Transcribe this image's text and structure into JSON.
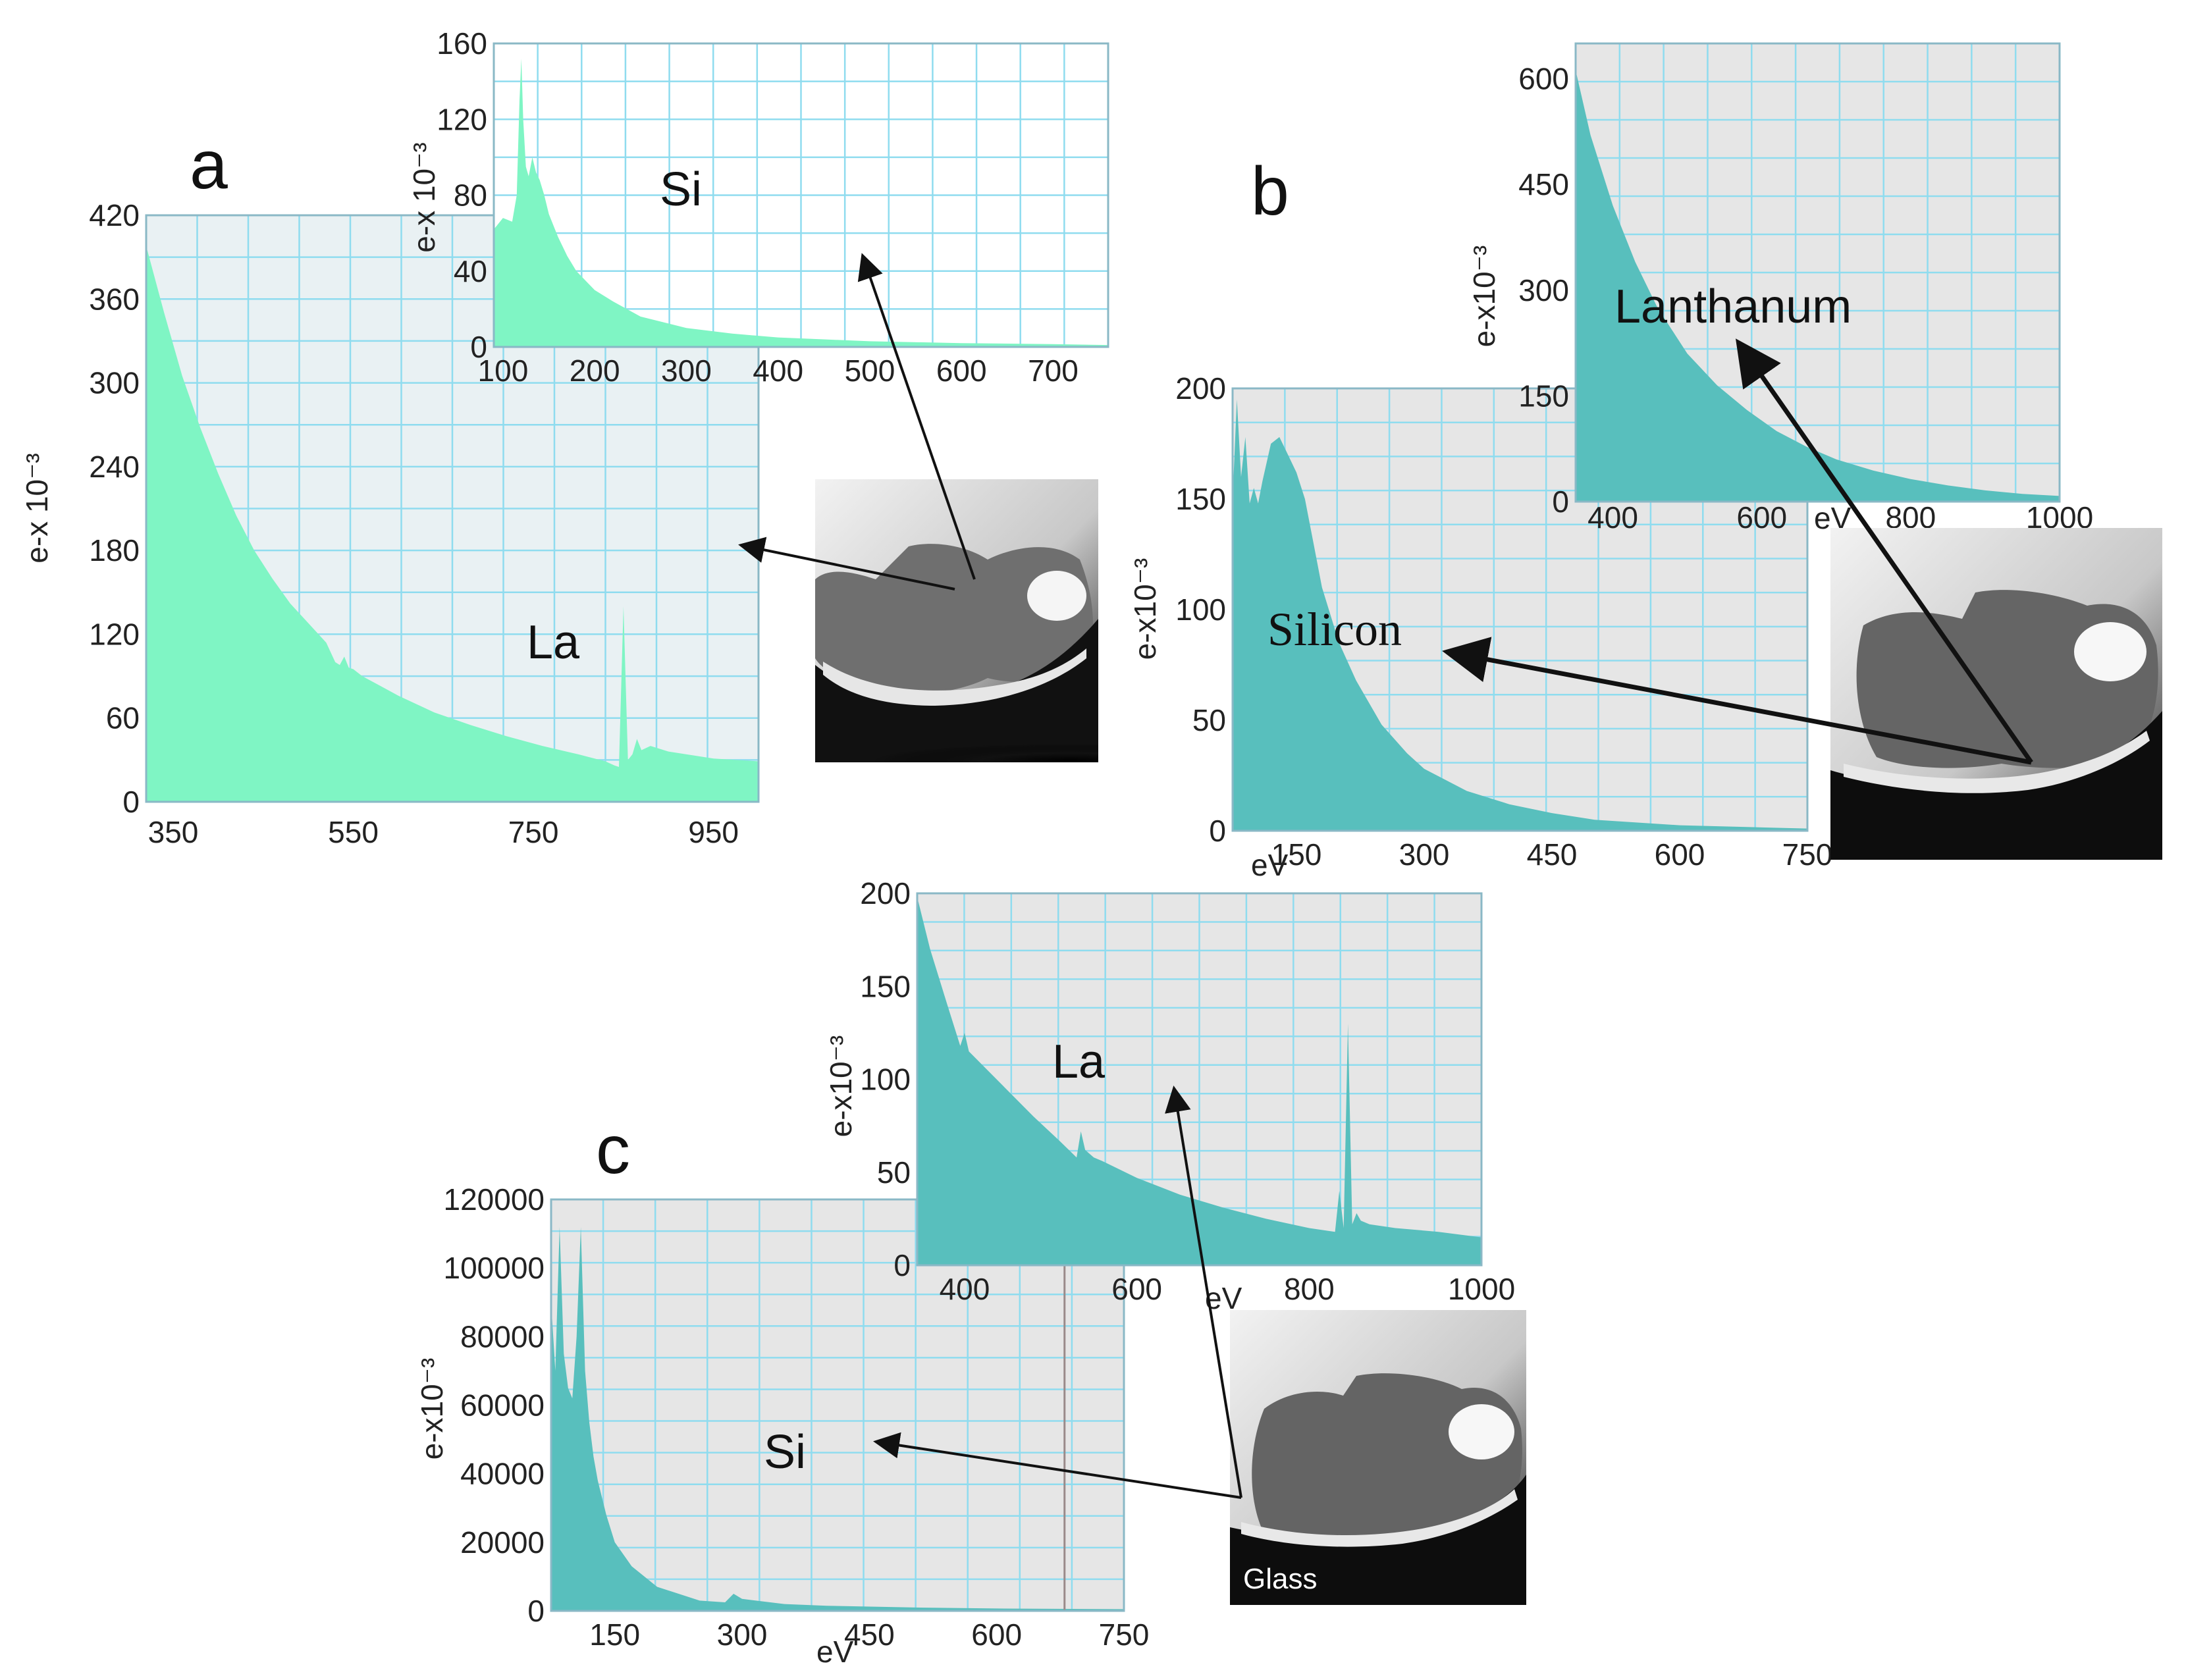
{
  "chart_data": [
    {
      "id": "a-main",
      "type": "area",
      "panel": "a",
      "ylabel": "e-x 10⁻³",
      "xlabel": "",
      "xlim": [
        320,
        1000
      ],
      "ylim": [
        0,
        420
      ],
      "xticks": [
        350,
        550,
        750,
        950
      ],
      "yticks": [
        0,
        60,
        120,
        180,
        240,
        300,
        360,
        420
      ],
      "annotation": "La",
      "color": "#7ff5c4",
      "x": [
        320,
        340,
        360,
        380,
        400,
        420,
        440,
        460,
        480,
        500,
        520,
        530,
        535,
        540,
        545,
        550,
        560,
        580,
        600,
        640,
        680,
        720,
        760,
        800,
        830,
        840,
        845,
        850,
        855,
        860,
        865,
        870,
        880,
        900,
        950,
        1000
      ],
      "values": [
        398,
        350,
        305,
        268,
        235,
        205,
        180,
        160,
        142,
        128,
        114,
        100,
        98,
        104,
        96,
        95,
        90,
        83,
        76,
        64,
        55,
        47,
        40,
        34,
        29,
        26,
        25,
        140,
        30,
        34,
        45,
        37,
        40,
        36,
        31,
        29
      ]
    },
    {
      "id": "a-inset",
      "type": "area",
      "panel": "a",
      "ylabel": "e-x 10⁻³",
      "xlabel": "",
      "xlim": [
        90,
        760
      ],
      "ylim": [
        0,
        160
      ],
      "xticks": [
        100,
        200,
        300,
        400,
        500,
        600,
        700
      ],
      "yticks": [
        0,
        40,
        80,
        120,
        160
      ],
      "annotation": "Si",
      "color": "#7ff5c4",
      "x": [
        90,
        100,
        110,
        115,
        118,
        120,
        122,
        125,
        128,
        132,
        136,
        140,
        145,
        150,
        160,
        170,
        180,
        200,
        220,
        250,
        300,
        350,
        400,
        450,
        500,
        600,
        700,
        760
      ],
      "values": [
        62,
        68,
        66,
        80,
        130,
        152,
        120,
        95,
        90,
        100,
        92,
        88,
        80,
        70,
        58,
        48,
        40,
        30,
        24,
        16,
        10,
        7,
        5,
        4,
        3,
        2,
        1.5,
        1
      ]
    },
    {
      "id": "b-main",
      "type": "area",
      "panel": "b",
      "ylabel": "e-x10⁻³",
      "xlabel": "eV",
      "xlim": [
        75,
        750
      ],
      "ylim": [
        0,
        200
      ],
      "xticks": [
        150,
        300,
        450,
        600,
        750
      ],
      "yticks": [
        0,
        50,
        100,
        150,
        200
      ],
      "annotation": "Silicon",
      "color": "#58bfbd",
      "x": [
        75,
        80,
        85,
        90,
        95,
        100,
        105,
        110,
        120,
        130,
        140,
        150,
        160,
        170,
        180,
        200,
        220,
        250,
        280,
        300,
        350,
        400,
        450,
        500,
        600,
        700,
        750
      ],
      "values": [
        150,
        195,
        160,
        178,
        148,
        155,
        148,
        158,
        175,
        178,
        170,
        162,
        150,
        130,
        110,
        85,
        68,
        48,
        35,
        28,
        18,
        12,
        8,
        5,
        2.5,
        1.5,
        1
      ]
    },
    {
      "id": "b-inset",
      "type": "area",
      "panel": "b",
      "ylabel": "e-x10⁻³",
      "xlabel": "eV",
      "xlim": [
        350,
        1000
      ],
      "ylim": [
        0,
        650
      ],
      "xticks": [
        400,
        600,
        800,
        1000
      ],
      "yticks": [
        0,
        150,
        300,
        450,
        600
      ],
      "annotation": "Lanthanum",
      "color": "#58bfbd",
      "x": [
        350,
        370,
        400,
        430,
        460,
        500,
        540,
        580,
        620,
        660,
        700,
        750,
        800,
        850,
        900,
        950,
        1000
      ],
      "values": [
        612,
        520,
        420,
        340,
        275,
        210,
        165,
        130,
        100,
        78,
        60,
        44,
        32,
        23,
        16,
        11,
        8
      ]
    },
    {
      "id": "c-main",
      "type": "area",
      "panel": "c",
      "ylabel": "e-x10⁻³",
      "xlabel": "eV",
      "xlim": [
        75,
        750
      ],
      "ylim": [
        0,
        120000
      ],
      "xticks": [
        150,
        300,
        450,
        600,
        750
      ],
      "yticks": [
        0,
        20000,
        40000,
        60000,
        80000,
        100000,
        120000
      ],
      "annotation": "Si",
      "color": "#58bfbd",
      "x": [
        75,
        80,
        85,
        90,
        95,
        100,
        105,
        110,
        115,
        120,
        125,
        130,
        140,
        150,
        170,
        200,
        250,
        280,
        290,
        300,
        350,
        400,
        500,
        600,
        750
      ],
      "values": [
        90000,
        70000,
        112000,
        75000,
        65000,
        62000,
        80000,
        112000,
        70000,
        55000,
        45000,
        38000,
        28000,
        20000,
        13000,
        7000,
        3000,
        2500,
        5000,
        3500,
        2000,
        1500,
        1000,
        700,
        500
      ],
      "marker_line_x": 680
    },
    {
      "id": "c-inset",
      "type": "area",
      "panel": "c",
      "ylabel": "e-x10⁻³",
      "xlabel": "eV",
      "xlim": [
        345,
        1000
      ],
      "ylim": [
        0,
        200
      ],
      "xticks": [
        400,
        600,
        800,
        1000
      ],
      "yticks": [
        0,
        50,
        100,
        150,
        200
      ],
      "annotation": "La",
      "color": "#58bfbd",
      "x": [
        345,
        360,
        380,
        395,
        400,
        405,
        420,
        450,
        480,
        510,
        530,
        535,
        540,
        550,
        560,
        600,
        650,
        700,
        750,
        800,
        830,
        835,
        840,
        845,
        850,
        855,
        860,
        870,
        900,
        950,
        1000
      ],
      "values": [
        198,
        170,
        140,
        118,
        125,
        115,
        108,
        94,
        80,
        67,
        58,
        72,
        62,
        58,
        56,
        47,
        38,
        31,
        25,
        20,
        18,
        40,
        20,
        130,
        22,
        28,
        24,
        22,
        20,
        18,
        15
      ]
    }
  ],
  "panels": {
    "a": "a",
    "b": "b",
    "c": "c"
  },
  "micrograph_label": "Glass"
}
